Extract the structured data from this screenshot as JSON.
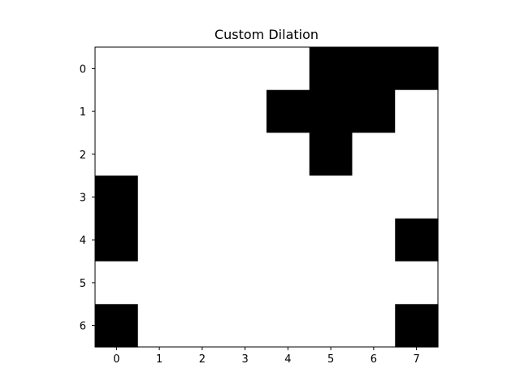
{
  "chart_data": {
    "type": "heatmap",
    "title": "Custom Dilation",
    "xlabel": "",
    "ylabel": "",
    "colormap": "binary",
    "x_ticks": [
      "0",
      "1",
      "2",
      "3",
      "4",
      "5",
      "6",
      "7"
    ],
    "y_ticks": [
      "0",
      "1",
      "2",
      "3",
      "4",
      "5",
      "6"
    ],
    "grid": false,
    "legend": "none",
    "colors": {
      "cell_on": "#000000",
      "cell_off": "#ffffff",
      "axes_frame": "#000000",
      "text": "#000000"
    },
    "matrix": [
      [
        0,
        0,
        0,
        0,
        0,
        1,
        1,
        1
      ],
      [
        0,
        0,
        0,
        0,
        1,
        1,
        1,
        0
      ],
      [
        0,
        0,
        0,
        0,
        0,
        1,
        0,
        0
      ],
      [
        1,
        0,
        0,
        0,
        0,
        0,
        0,
        0
      ],
      [
        1,
        0,
        0,
        0,
        0,
        0,
        0,
        1
      ],
      [
        0,
        0,
        0,
        0,
        0,
        0,
        0,
        0
      ],
      [
        1,
        0,
        0,
        0,
        0,
        0,
        0,
        1
      ]
    ]
  }
}
